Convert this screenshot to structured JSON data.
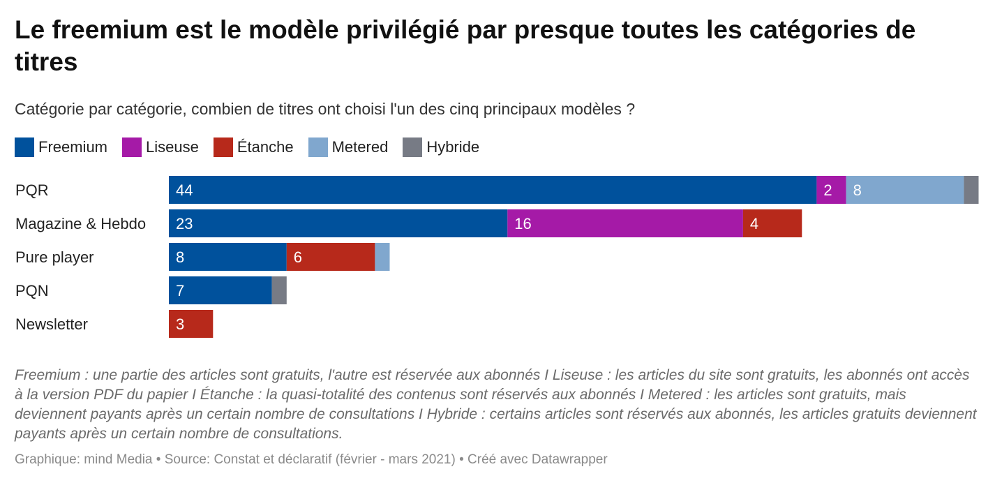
{
  "chart_data": {
    "type": "bar",
    "orientation": "horizontal",
    "stacked": true,
    "title": "Le freemium est le modèle privilégié par presque toutes les catégories de titres",
    "subtitle": "Catégorie par catégorie, combien de titres ont choisi l'un des cinq principaux modèles ?",
    "categories": [
      "PQR",
      "Magazine & Hebdo",
      "Pure player",
      "PQN",
      "Newsletter"
    ],
    "series": [
      {
        "name": "Freemium",
        "color": "#00519c",
        "values": [
          44,
          23,
          8,
          7,
          0
        ]
      },
      {
        "name": "Liseuse",
        "color": "#a51aa7",
        "values": [
          2,
          16,
          0,
          0,
          0
        ]
      },
      {
        "name": "Étanche",
        "color": "#b7291b",
        "values": [
          0,
          4,
          6,
          0,
          3
        ]
      },
      {
        "name": "Metered",
        "color": "#80a7ce",
        "values": [
          8,
          0,
          1,
          0,
          0
        ]
      },
      {
        "name": "Hybride",
        "color": "#777b85",
        "values": [
          1,
          0,
          0,
          1,
          0
        ]
      }
    ],
    "grid": false,
    "legend_position": "top-left",
    "notes": "Freemium : une partie des articles sont gratuits, l'autre est réservée aux abonnés I Liseuse : les articles du site sont gratuits, les abonnés ont accès à la version PDF du papier I Étanche : la quasi-totalité des contenus sont réservés aux abonnés I Metered : les articles sont gratuits, mais deviennent payants après un certain nombre de consultations I Hybride : certains articles sont réservés aux abonnés, les articles gratuits deviennent payants après un certain nombre de consultations.",
    "footer": "Graphique: mind Media • Source: Constat et déclaratif (février - mars 2021) • Créé avec Datawrapper"
  }
}
